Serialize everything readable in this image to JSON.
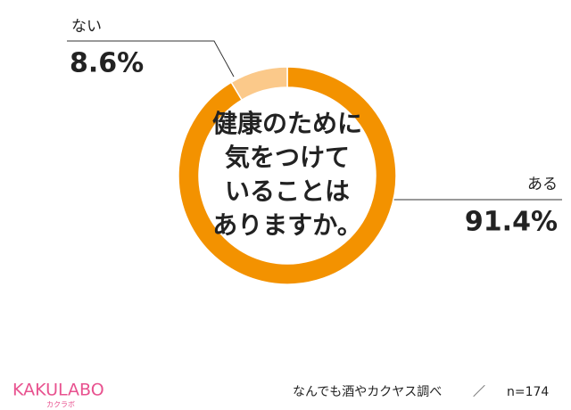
{
  "chart_data": {
    "type": "pie",
    "categories": [
      "ある",
      "ない"
    ],
    "values": [
      91.4,
      8.6
    ],
    "value_labels": [
      "91.4%",
      "8.6%"
    ],
    "colors": [
      "#f39200",
      "#fbc98a"
    ],
    "center_text": [
      "健康のために",
      "気をつけて",
      "いることは",
      "ありますか。"
    ],
    "source": "なんでも酒やカクヤス調べ",
    "separator": "／",
    "sample": "n=174",
    "brand": {
      "name": "KAKULABO",
      "sub": "カクラボ"
    }
  }
}
